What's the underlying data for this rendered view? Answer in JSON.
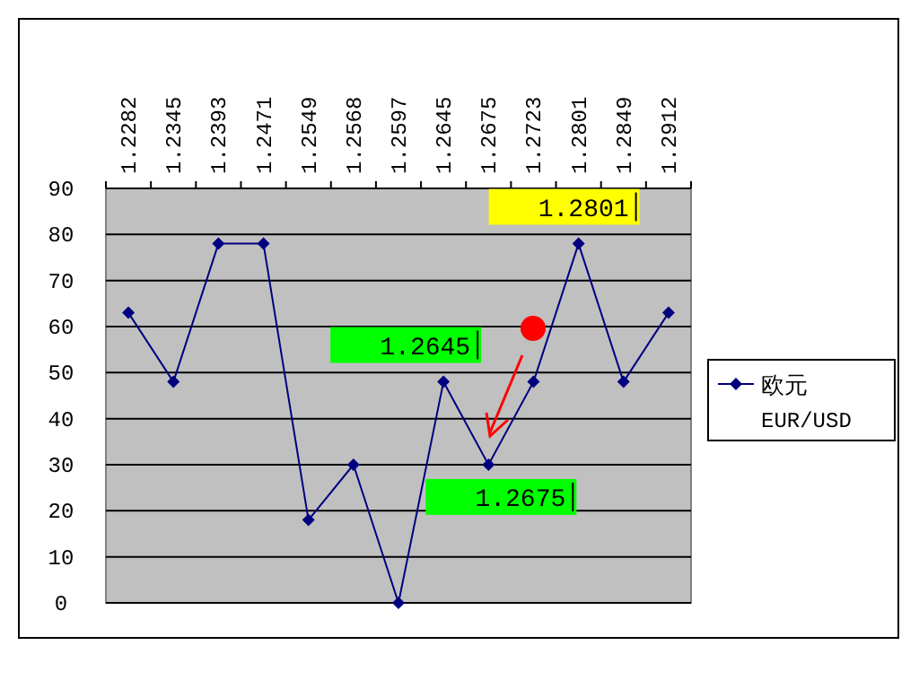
{
  "chart_data": {
    "type": "line",
    "categories": [
      "1.2282",
      "1.2345",
      "1.2393",
      "1.2471",
      "1.2549",
      "1.2568",
      "1.2597",
      "1.2645",
      "1.2675",
      "1.2723",
      "1.2801",
      "1.2849",
      "1.2912"
    ],
    "series": [
      {
        "name": "欧元 EUR/USD",
        "color": "#000080",
        "values": [
          63,
          48,
          78,
          78,
          18,
          30,
          0,
          48,
          30,
          48,
          78,
          48,
          63
        ]
      }
    ],
    "ylim": [
      0,
      90
    ],
    "yticks": [
      0,
      10,
      20,
      30,
      40,
      50,
      60,
      70,
      80,
      90
    ],
    "grid": "y",
    "legend": "right",
    "marker": "diamond",
    "line_style": "solid",
    "annotations": [
      {
        "text": "1.2801",
        "x": "1.2801",
        "y": 78
      },
      {
        "text": "1.2645",
        "x": "1.2645",
        "y": 48
      },
      {
        "text": "1.2675",
        "x": "1.2675",
        "y": 30
      }
    ]
  }
}
